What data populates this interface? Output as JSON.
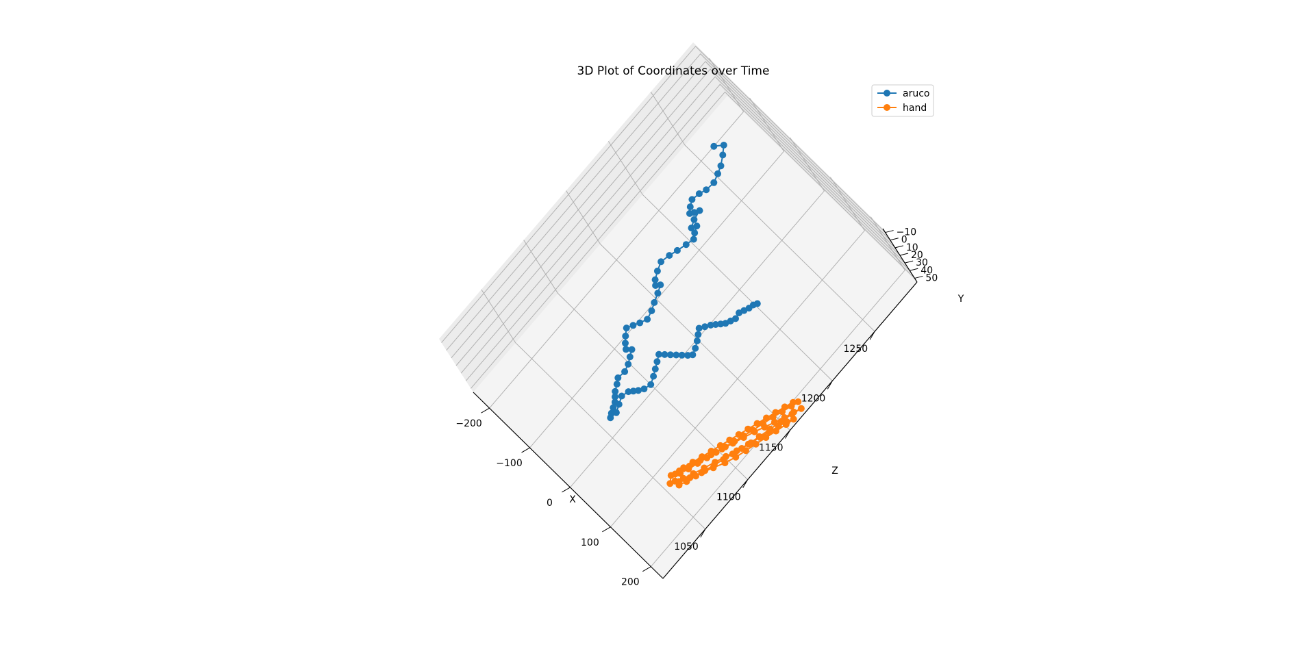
{
  "chart_data": {
    "type": "scatter",
    "projection": "3d",
    "title": "3D Plot of Coordinates over Time",
    "xlabel": "X",
    "ylabel": "Y",
    "zlabel": "Z",
    "xlim": [
      -240,
      230
    ],
    "ylim": [
      -15,
      55
    ],
    "zlim": [
      1000,
      1300
    ],
    "xticks": [
      "−200",
      "−100",
      "0",
      "100",
      "200"
    ],
    "xtick_values": [
      -200,
      -100,
      0,
      100,
      200
    ],
    "yticks": [
      "−10",
      "0",
      "10",
      "20",
      "30",
      "40",
      "50"
    ],
    "ytick_values": [
      -10,
      0,
      10,
      20,
      30,
      40,
      50
    ],
    "zticks": [
      "1050",
      "1100",
      "1150",
      "1200",
      "1250"
    ],
    "ztick_values": [
      1050,
      1100,
      1150,
      1200,
      1250
    ],
    "grid": true,
    "legend_position": "top-right",
    "series": [
      {
        "name": "aruco",
        "color": "#1f77b4",
        "marker": "circle",
        "points": [
          [
            -200,
            1265
          ],
          [
            -188,
            1271
          ],
          [
            -178,
            1265
          ],
          [
            -168,
            1258
          ],
          [
            -163,
            1252
          ],
          [
            -158,
            1245
          ],
          [
            -160,
            1237
          ],
          [
            -165,
            1231
          ],
          [
            -168,
            1224
          ],
          [
            -162,
            1219
          ],
          [
            -155,
            1215
          ],
          [
            -150,
            1218
          ],
          [
            -145,
            1222
          ],
          [
            -142,
            1214
          ],
          [
            -136,
            1208
          ],
          [
            -131,
            1212
          ],
          [
            -126,
            1207
          ],
          [
            -120,
            1203
          ],
          [
            -124,
            1196
          ],
          [
            -129,
            1188
          ],
          [
            -134,
            1181
          ],
          [
            -138,
            1173
          ],
          [
            -132,
            1166
          ],
          [
            -125,
            1160
          ],
          [
            -118,
            1157
          ],
          [
            -112,
            1160
          ],
          [
            -106,
            1154
          ],
          [
            -100,
            1147
          ],
          [
            -94,
            1141
          ],
          [
            -90,
            1134
          ],
          [
            -96,
            1128
          ],
          [
            -102,
            1123
          ],
          [
            -108,
            1118
          ],
          [
            -100,
            1113
          ],
          [
            -92,
            1109
          ],
          [
            -84,
            1106
          ],
          [
            -76,
            1109
          ],
          [
            -70,
            1104
          ],
          [
            -64,
            1099
          ],
          [
            -60,
            1093
          ],
          [
            -62,
            1086
          ],
          [
            -56,
            1082
          ],
          [
            -50,
            1077
          ],
          [
            -44,
            1074
          ],
          [
            -38,
            1071
          ],
          [
            -34,
            1067
          ],
          [
            -30,
            1063
          ],
          [
            -26,
            1060
          ],
          [
            -24,
            1066
          ],
          [
            -30,
            1072
          ],
          [
            -36,
            1078
          ],
          [
            -32,
            1084
          ],
          [
            -26,
            1087
          ],
          [
            -20,
            1090
          ],
          [
            -14,
            1094
          ],
          [
            -10,
            1100
          ],
          [
            -16,
            1106
          ],
          [
            -22,
            1111
          ],
          [
            -28,
            1116
          ],
          [
            -34,
            1121
          ],
          [
            -26,
            1124
          ],
          [
            -18,
            1127
          ],
          [
            -10,
            1130
          ],
          [
            -2,
            1133
          ],
          [
            6,
            1136
          ],
          [
            12,
            1139
          ],
          [
            8,
            1144
          ],
          [
            2,
            1149
          ],
          [
            -4,
            1153
          ],
          [
            -10,
            1157
          ],
          [
            -4,
            1161
          ],
          [
            2,
            1165
          ],
          [
            8,
            1168
          ],
          [
            14,
            1171
          ],
          [
            20,
            1174
          ],
          [
            24,
            1178
          ],
          [
            28,
            1182
          ],
          [
            26,
            1187
          ],
          [
            30,
            1191
          ],
          [
            34,
            1195
          ],
          [
            36,
            1199
          ],
          [
            40,
            1202
          ]
        ]
      },
      {
        "name": "hand",
        "color": "#ff7f0e",
        "marker": "circle",
        "points": [
          [
            132,
            1067
          ],
          [
            138,
            1074
          ],
          [
            144,
            1082
          ],
          [
            150,
            1090
          ],
          [
            156,
            1098
          ],
          [
            162,
            1106
          ],
          [
            168,
            1114
          ],
          [
            174,
            1122
          ],
          [
            180,
            1130
          ],
          [
            186,
            1139
          ],
          [
            192,
            1148
          ],
          [
            198,
            1156
          ],
          [
            204,
            1164
          ],
          [
            208,
            1170
          ],
          [
            202,
            1167
          ],
          [
            196,
            1160
          ],
          [
            190,
            1152
          ],
          [
            184,
            1144
          ],
          [
            178,
            1136
          ],
          [
            172,
            1128
          ],
          [
            166,
            1120
          ],
          [
            160,
            1112
          ],
          [
            154,
            1104
          ],
          [
            148,
            1096
          ],
          [
            142,
            1088
          ],
          [
            136,
            1080
          ],
          [
            130,
            1072
          ],
          [
            126,
            1064
          ],
          [
            134,
            1060
          ],
          [
            142,
            1066
          ],
          [
            150,
            1074
          ],
          [
            158,
            1083
          ],
          [
            166,
            1092
          ],
          [
            174,
            1101
          ],
          [
            182,
            1110
          ],
          [
            190,
            1120
          ],
          [
            196,
            1130
          ],
          [
            202,
            1140
          ],
          [
            208,
            1150
          ],
          [
            214,
            1160
          ],
          [
            220,
            1168
          ],
          [
            214,
            1162
          ],
          [
            208,
            1154
          ],
          [
            200,
            1146
          ],
          [
            192,
            1138
          ],
          [
            184,
            1130
          ],
          [
            176,
            1121
          ],
          [
            168,
            1112
          ],
          [
            160,
            1103
          ],
          [
            152,
            1094
          ],
          [
            144,
            1085
          ],
          [
            136,
            1076
          ],
          [
            128,
            1068
          ],
          [
            122,
            1061
          ],
          [
            130,
            1056
          ],
          [
            140,
            1062
          ],
          [
            150,
            1070
          ],
          [
            160,
            1079
          ],
          [
            170,
            1088
          ],
          [
            180,
            1097
          ],
          [
            188,
            1106
          ],
          [
            194,
            1115
          ],
          [
            200,
            1124
          ],
          [
            206,
            1133
          ],
          [
            212,
            1142
          ],
          [
            218,
            1151
          ],
          [
            222,
            1158
          ],
          [
            216,
            1153
          ],
          [
            210,
            1146
          ],
          [
            204,
            1138
          ],
          [
            198,
            1130
          ],
          [
            192,
            1122
          ],
          [
            186,
            1114
          ],
          [
            180,
            1106
          ],
          [
            174,
            1098
          ],
          [
            168,
            1090
          ],
          [
            162,
            1082
          ],
          [
            156,
            1074
          ],
          [
            150,
            1066
          ],
          [
            144,
            1060
          ]
        ]
      }
    ]
  }
}
